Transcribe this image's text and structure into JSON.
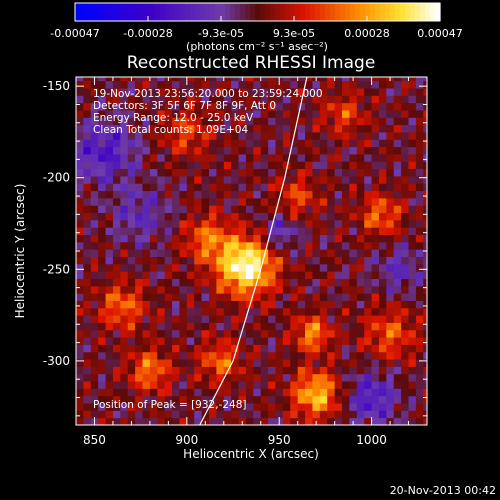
{
  "colorbar": {
    "tick_labels": [
      "-0.00047",
      "-0.00028",
      "-9.3e-05",
      "9.3e-05",
      "0.00028",
      "0.00047"
    ],
    "range": [
      -0.00047,
      0.00047
    ],
    "unit_label": "(photons cm⁻² s⁻¹ asec⁻²)",
    "colormap": "RHESSI blue-purple-red-yellow-white"
  },
  "chart_data": {
    "type": "heatmap",
    "title": "Reconstructed RHESSI Image",
    "xlabel": "Heliocentric X (arcsec)",
    "ylabel": "Heliocentric Y (arcsec)",
    "xlim": [
      840,
      1030
    ],
    "ylim": [
      -335,
      -145
    ],
    "x_ticks": [
      850,
      900,
      950,
      1000
    ],
    "y_ticks": [
      -150,
      -200,
      -250,
      -300
    ],
    "grid": false,
    "annotations": [
      "19-Nov-2013 23:56:20.000 to 23:59:24.000",
      "Detectors: 3F 5F 6F 7F 8F 9F, Att 0",
      "Energy Range: 12.0 - 25.0 keV",
      "Clean    Total counts: 1.09E+04"
    ],
    "peak_label": "Position of Peak = [932,-248]",
    "peak": [
      932,
      -248
    ],
    "sources": [
      {
        "x": 932,
        "y": -248,
        "amp": 1.0,
        "sigma": 11
      },
      {
        "x": 911,
        "y": -233,
        "amp": 0.45,
        "sigma": 9
      },
      {
        "x": 970,
        "y": -318,
        "amp": 0.7,
        "sigma": 9
      },
      {
        "x": 880,
        "y": -305,
        "amp": 0.5,
        "sigma": 8
      },
      {
        "x": 865,
        "y": -270,
        "amp": 0.45,
        "sigma": 9
      },
      {
        "x": 1010,
        "y": -285,
        "amp": 0.4,
        "sigma": 10
      },
      {
        "x": 960,
        "y": -210,
        "amp": 0.35,
        "sigma": 8
      },
      {
        "x": 900,
        "y": -175,
        "amp": 0.35,
        "sigma": 9
      },
      {
        "x": 1005,
        "y": -220,
        "amp": 0.45,
        "sigma": 8
      },
      {
        "x": 968,
        "y": -285,
        "amp": 0.55,
        "sigma": 7
      },
      {
        "x": 918,
        "y": -300,
        "amp": 0.45,
        "sigma": 8
      },
      {
        "x": 985,
        "y": -165,
        "amp": 0.35,
        "sigma": 8
      },
      {
        "x": 855,
        "y": -185,
        "amp": -0.45,
        "sigma": 12
      },
      {
        "x": 875,
        "y": -220,
        "amp": -0.3,
        "sigma": 11
      },
      {
        "x": 1000,
        "y": -320,
        "amp": -0.45,
        "sigma": 10
      },
      {
        "x": 950,
        "y": -230,
        "amp": -0.35,
        "sigma": 7
      },
      {
        "x": 1015,
        "y": -250,
        "amp": -0.3,
        "sigma": 9
      }
    ],
    "limb_curve": [
      [
        965,
        -145
      ],
      [
        953,
        -200
      ],
      [
        940,
        -250
      ],
      [
        925,
        -300
      ],
      [
        907,
        -335
      ]
    ]
  },
  "footer": {
    "timestamp": "20-Nov-2013 00:42"
  }
}
